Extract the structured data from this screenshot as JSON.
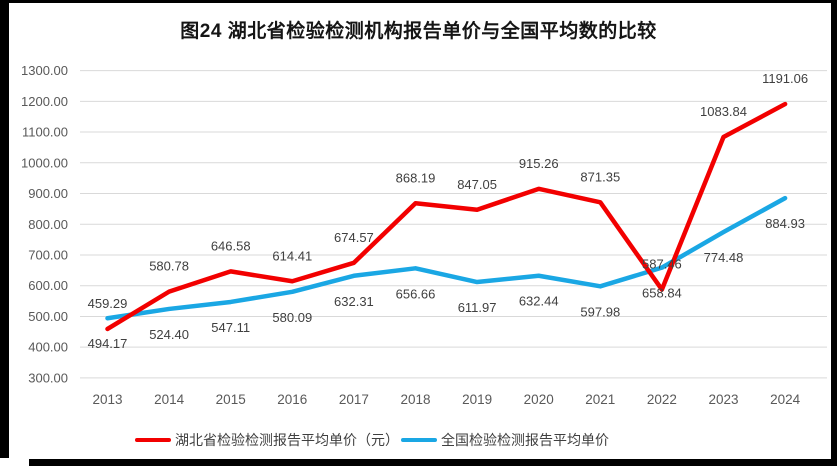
{
  "frame": {
    "background": "#000000",
    "card_background": "#ffffff"
  },
  "chart_data": {
    "type": "line",
    "title": "图24 湖北省检验检测机构报告单价与全国平均数的比较",
    "categories": [
      "2013",
      "2014",
      "2015",
      "2016",
      "2017",
      "2018",
      "2019",
      "2020",
      "2021",
      "2022",
      "2023",
      "2024"
    ],
    "series": [
      {
        "name": "湖北省检验检测报告平均单价（元）",
        "color": "#f20000",
        "label_position": "above",
        "values": [
          459.29,
          580.78,
          646.58,
          614.41,
          674.57,
          868.19,
          847.05,
          915.26,
          871.35,
          587.46,
          1083.84,
          1191.06
        ]
      },
      {
        "name": "全国检验检测报告平均单价",
        "color": "#1aa7e4",
        "label_position": "below",
        "values": [
          494.17,
          524.4,
          547.11,
          580.09,
          632.31,
          656.66,
          611.97,
          632.44,
          597.98,
          658.84,
          774.48,
          884.93
        ]
      }
    ],
    "ylim": [
      300,
      1300
    ],
    "ytick_step": 100,
    "ytick_decimals": 2,
    "data_label_decimals": 2,
    "grid": true,
    "legend_position": "bottom",
    "colors": {
      "gridline": "#d9d9d9",
      "axis_label": "#595959",
      "data_label": "#404040"
    }
  }
}
